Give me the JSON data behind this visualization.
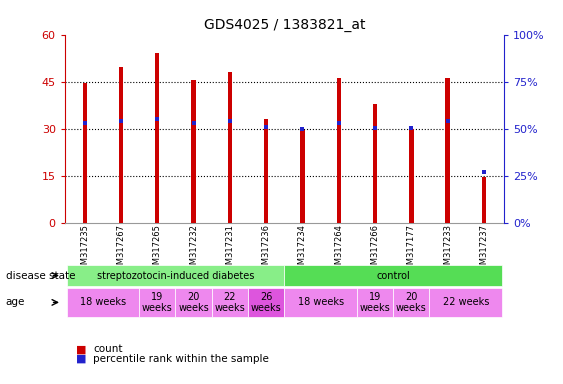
{
  "title": "GDS4025 / 1383821_at",
  "samples": [
    "GSM317235",
    "GSM317267",
    "GSM317265",
    "GSM317232",
    "GSM317231",
    "GSM317236",
    "GSM317234",
    "GSM317264",
    "GSM317266",
    "GSM317177",
    "GSM317233",
    "GSM317237"
  ],
  "counts": [
    44.5,
    49.5,
    54.0,
    45.5,
    48.0,
    33.0,
    29.5,
    46.0,
    38.0,
    30.0,
    46.0,
    14.5
  ],
  "percentiles": [
    53.0,
    54.0,
    55.0,
    53.0,
    54.0,
    51.0,
    50.0,
    53.0,
    50.5,
    50.5,
    54.0,
    27.0
  ],
  "left_ylim": [
    0,
    60
  ],
  "right_ylim": [
    0,
    100
  ],
  "left_yticks": [
    0,
    15,
    30,
    45,
    60
  ],
  "left_yticklabels": [
    "0",
    "15",
    "30",
    "45",
    "60"
  ],
  "right_yticks": [
    0,
    25,
    50,
    75,
    100
  ],
  "right_yticklabels": [
    "0%",
    "25%",
    "50%",
    "75%",
    "100%"
  ],
  "bar_color": "#cc0000",
  "dot_color": "#2222cc",
  "grid_color": "#000000",
  "background_color": "#ffffff",
  "disease_state_groups": [
    {
      "label": "streptozotocin-induced diabetes",
      "start": 0,
      "end": 6,
      "color": "#88ee88"
    },
    {
      "label": "control",
      "start": 6,
      "end": 12,
      "color": "#55dd55"
    }
  ],
  "age_groups": [
    {
      "label": "18 weeks",
      "start": 0,
      "end": 2,
      "color": "#ee88ee"
    },
    {
      "label": "19\nweeks",
      "start": 2,
      "end": 3,
      "color": "#ee88ee"
    },
    {
      "label": "20\nweeks",
      "start": 3,
      "end": 4,
      "color": "#ee88ee"
    },
    {
      "label": "22\nweeks",
      "start": 4,
      "end": 5,
      "color": "#ee88ee"
    },
    {
      "label": "26\nweeks",
      "start": 5,
      "end": 6,
      "color": "#dd55dd"
    },
    {
      "label": "18 weeks",
      "start": 6,
      "end": 8,
      "color": "#ee88ee"
    },
    {
      "label": "19\nweeks",
      "start": 8,
      "end": 9,
      "color": "#ee88ee"
    },
    {
      "label": "20\nweeks",
      "start": 9,
      "end": 10,
      "color": "#ee88ee"
    },
    {
      "label": "22 weeks",
      "start": 10,
      "end": 12,
      "color": "#ee88ee"
    }
  ],
  "legend_count_color": "#cc0000",
  "legend_dot_color": "#2222cc",
  "tick_color_left": "#cc0000",
  "tick_color_right": "#2222cc",
  "bar_width": 0.12,
  "n": 12
}
